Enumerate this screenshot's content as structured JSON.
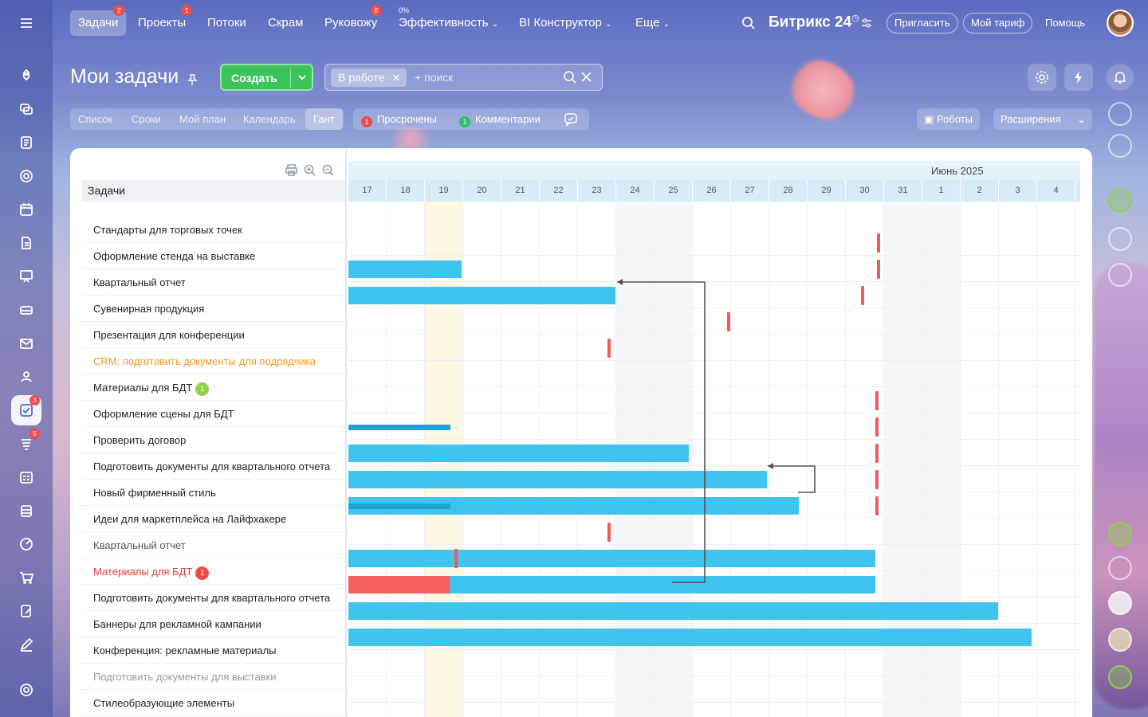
{
  "topnav": {
    "items": [
      {
        "label": "Задачи",
        "badge": "2"
      },
      {
        "label": "Проекты",
        "badge": "1"
      },
      {
        "label": "Потоки"
      },
      {
        "label": "Скрам"
      },
      {
        "label": "Руковожу",
        "badge": "8"
      },
      {
        "label": "Эффективность",
        "small": "0%"
      },
      {
        "label": "BI Конструктор"
      },
      {
        "label": "Еще"
      }
    ],
    "brand": "Битрикс 24",
    "invite": "Пригласить",
    "tariff": "Мой тариф",
    "help": "Помощь"
  },
  "left_rail_badges": {
    "tasks": "3",
    "feed": "5"
  },
  "header": {
    "title": "Мои задачи",
    "create": "Создать",
    "filter_chip": "В работе",
    "search_placeholder": "+ поиск"
  },
  "view_tabs": [
    "Список",
    "Сроки",
    "Мой план",
    "Календарь",
    "Гант"
  ],
  "counters": [
    {
      "count": "1",
      "label": "Просрочены",
      "color": "#f04b4b"
    },
    {
      "count": "1",
      "label": "Комментарии",
      "color": "#2fc26e"
    }
  ],
  "right_buttons": {
    "robots": "Роботы",
    "extensions": "Расширения"
  },
  "gantt": {
    "column_header": "Задачи",
    "month": "Июнь 2025",
    "days": [
      "17",
      "18",
      "19",
      "20",
      "21",
      "22",
      "23",
      "24",
      "25",
      "26",
      "27",
      "28",
      "29",
      "30",
      "31",
      "1",
      "2",
      "3",
      "4"
    ],
    "tasks": [
      {
        "name": "Стандарты для торговых точек",
        "style": "normal"
      },
      {
        "name": "Оформление стенда на выставке",
        "style": "normal"
      },
      {
        "name": "Квартальный отчет",
        "style": "normal"
      },
      {
        "name": "Сувенирная продукция",
        "style": "normal"
      },
      {
        "name": "Презентация для конференции",
        "style": "normal"
      },
      {
        "name": "CRM: подготовить документы для подрядчика",
        "style": "orange"
      },
      {
        "name": "Материалы для БДТ",
        "style": "normal",
        "badge": "1",
        "badge_color": "#8fd14a"
      },
      {
        "name": "Оформление сцены для БДТ",
        "style": "normal"
      },
      {
        "name": "Проверить договор",
        "style": "normal"
      },
      {
        "name": "Подготовить документы для квартального отчета",
        "style": "normal"
      },
      {
        "name": "Новый фирменный стиль",
        "style": "normal"
      },
      {
        "name": "Идеи для маркетплейса на Лайфхакере",
        "style": "normal"
      },
      {
        "name": "Квартальный отчет",
        "style": "grey"
      },
      {
        "name": "Материалы для БДТ",
        "style": "red",
        "badge": "1",
        "badge_color": "#f04b4b"
      },
      {
        "name": "Подготовить документы для квартального отчета",
        "style": "normal"
      },
      {
        "name": "Баннеры для рекламной кампании",
        "style": "normal"
      },
      {
        "name": "Конференция: рекламные материалы",
        "style": "normal"
      },
      {
        "name": "Подготовить документы для выставки",
        "style": "lightgrey"
      },
      {
        "name": "Стилеобразующие элементы",
        "style": "normal"
      }
    ]
  }
}
